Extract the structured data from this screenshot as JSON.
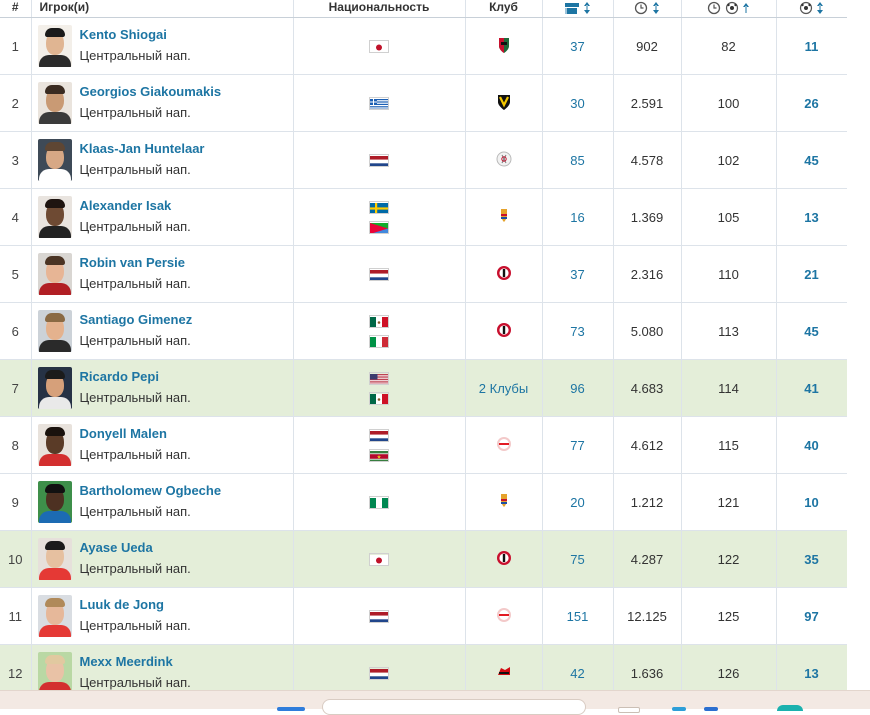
{
  "header": {
    "num": "#",
    "player": "Игрок(и)",
    "nationality": "Национальность",
    "club": "Клуб",
    "col_appearances_icon": "appearances-icon",
    "col_minutes_icon": "minutes-icon",
    "col_minutes_per_goal_icon": "minutes-per-goal-icon",
    "col_goals_icon": "goals-icon"
  },
  "rows": [
    {
      "n": "1",
      "name": "Kento Shiogai",
      "pos": "Центральный нап.",
      "flags": [
        "japan"
      ],
      "club": "nec",
      "apps": "37",
      "mins": "902",
      "mpg": "82",
      "goals": "11",
      "hl": false
    },
    {
      "n": "2",
      "name": "Georgios Giakoumakis",
      "pos": "Центральный нап.",
      "flags": [
        "greece"
      ],
      "club": "vvv",
      "apps": "30",
      "mins": "2.591",
      "mpg": "100",
      "goals": "26",
      "hl": false
    },
    {
      "n": "3",
      "name": "Klaas-Jan Huntelaar",
      "pos": "Центральный нап.",
      "flags": [
        "netherlands"
      ],
      "club": "ajax",
      "apps": "85",
      "mins": "4.578",
      "mpg": "102",
      "goals": "45",
      "hl": false
    },
    {
      "n": "4",
      "name": "Alexander Isak",
      "pos": "Центральный нап.",
      "flags": [
        "sweden",
        "eritrea"
      ],
      "club": "willem2",
      "apps": "16",
      "mins": "1.369",
      "mpg": "105",
      "goals": "13",
      "hl": false
    },
    {
      "n": "5",
      "name": "Robin van Persie",
      "pos": "Центральный нап.",
      "flags": [
        "netherlands"
      ],
      "club": "feyenoord",
      "apps": "37",
      "mins": "2.316",
      "mpg": "110",
      "goals": "21",
      "hl": false
    },
    {
      "n": "6",
      "name": "Santiago Gimenez",
      "pos": "Центральный нап.",
      "flags": [
        "mexico",
        "italy"
      ],
      "club": "feyenoord",
      "apps": "73",
      "mins": "5.080",
      "mpg": "113",
      "goals": "45",
      "hl": false
    },
    {
      "n": "7",
      "name": "Ricardo Pepi",
      "pos": "Центральный нап.",
      "flags": [
        "usa",
        "mexico"
      ],
      "club_text": "2 Клубы",
      "apps": "96",
      "mins": "4.683",
      "mpg": "114",
      "goals": "41",
      "hl": true
    },
    {
      "n": "8",
      "name": "Donyell Malen",
      "pos": "Центральный нап.",
      "flags": [
        "netherlands",
        "suriname"
      ],
      "club": "psv",
      "apps": "77",
      "mins": "4.612",
      "mpg": "115",
      "goals": "40",
      "hl": false
    },
    {
      "n": "9",
      "name": "Bartholomew Ogbeche",
      "pos": "Центральный нап.",
      "flags": [
        "nigeria"
      ],
      "club": "willem2",
      "apps": "20",
      "mins": "1.212",
      "mpg": "121",
      "goals": "10",
      "hl": false
    },
    {
      "n": "10",
      "name": "Ayase Ueda",
      "pos": "Центральный нап.",
      "flags": [
        "japan"
      ],
      "club": "feyenoord",
      "apps": "75",
      "mins": "4.287",
      "mpg": "122",
      "goals": "35",
      "hl": true
    },
    {
      "n": "11",
      "name": "Luuk de Jong",
      "pos": "Центральный нап.",
      "flags": [
        "netherlands"
      ],
      "club": "psv",
      "apps": "151",
      "mins": "12.125",
      "mpg": "125",
      "goals": "97",
      "hl": false
    },
    {
      "n": "12",
      "name": "Mexx Meerdink",
      "pos": "Центральный нап.",
      "flags": [
        "netherlands"
      ],
      "club": "az",
      "apps": "42",
      "mins": "1.636",
      "mpg": "126",
      "goals": "13",
      "hl": true
    }
  ],
  "colors": {
    "link": "#1d75a3",
    "highlight_row": "#e4eed9",
    "taskbar": "#f3e9e3"
  }
}
